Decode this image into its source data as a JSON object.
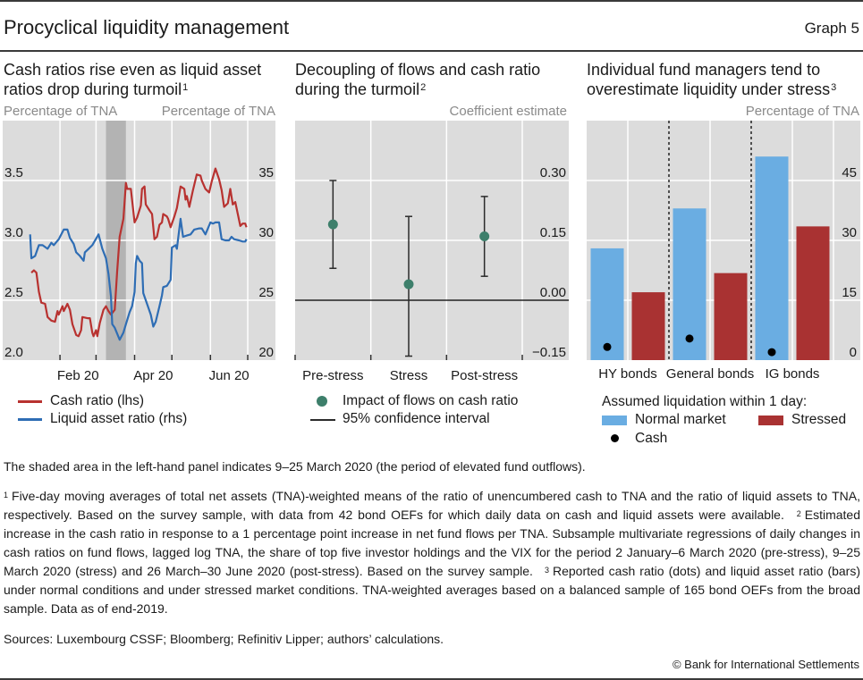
{
  "header": {
    "title": "Procyclical liquidity management",
    "graph_label": "Graph 5"
  },
  "chart_data": [
    {
      "type": "line",
      "title_lines": [
        "Cash ratios rise even as liquid asset",
        "ratios drop during turmoil"
      ],
      "title_footnote": "1",
      "ylabel_left": "Percentage of TNA",
      "ylabel_right": "Percentage of TNA",
      "ylim_left": [
        2.0,
        4.0
      ],
      "ylim_right": [
        20,
        40
      ],
      "yticks_left": [
        {
          "value": 2.0,
          "label": "2.0"
        },
        {
          "value": 2.5,
          "label": "2.5"
        },
        {
          "value": 3.0,
          "label": "3.0"
        },
        {
          "value": 3.5,
          "label": "3.5"
        }
      ],
      "yticks_right": [
        {
          "value": 20,
          "label": "20"
        },
        {
          "value": 25,
          "label": "25"
        },
        {
          "value": 30,
          "label": "30"
        },
        {
          "value": 35,
          "label": "35"
        }
      ],
      "xlim": [
        "2020-01-01",
        "2020-07-01"
      ],
      "xticks": [
        "2020-02-01",
        "2020-03-01",
        "2020-04-01",
        "2020-05-01",
        "2020-06-01",
        "2020-07-01"
      ],
      "xtick_labels": [
        {
          "label": "Feb 20",
          "month_start": "2020-02-01",
          "month_end": "2020-03-01"
        },
        {
          "label": "Apr 20",
          "month_start": "2020-04-01",
          "month_end": "2020-05-01"
        },
        {
          "label": "Jun 20",
          "month_start": "2020-06-01",
          "month_end": "2020-07-01"
        }
      ],
      "shaded_period": [
        "2020-03-09",
        "2020-03-25"
      ],
      "grid": true,
      "legend": "bottom-left",
      "series": [
        {
          "name": "Cash ratio (lhs)",
          "axis": "left",
          "color": "#b83230",
          "points": [
            [
              "2020-01-09",
              2.73
            ],
            [
              "2020-01-11",
              2.75
            ],
            [
              "2020-01-13",
              2.73
            ],
            [
              "2020-01-15",
              2.57
            ],
            [
              "2020-01-17",
              2.48
            ],
            [
              "2020-01-20",
              2.47
            ],
            [
              "2020-01-22",
              2.36
            ],
            [
              "2020-01-25",
              2.33
            ],
            [
              "2020-01-28",
              2.32
            ],
            [
              "2020-01-30",
              2.41
            ],
            [
              "2020-01-31",
              2.38
            ],
            [
              "2020-02-03",
              2.45
            ],
            [
              "2020-02-04",
              2.41
            ],
            [
              "2020-02-07",
              2.47
            ],
            [
              "2020-02-09",
              2.42
            ],
            [
              "2020-02-11",
              2.3
            ],
            [
              "2020-02-14",
              2.21
            ],
            [
              "2020-02-16",
              2.2
            ],
            [
              "2020-02-18",
              2.25
            ],
            [
              "2020-02-19",
              2.36
            ],
            [
              "2020-02-23",
              2.35
            ],
            [
              "2020-02-25",
              2.35
            ],
            [
              "2020-02-27",
              2.23
            ],
            [
              "2020-02-28",
              2.2
            ],
            [
              "2020-03-01",
              2.25
            ],
            [
              "2020-03-02",
              2.2
            ],
            [
              "2020-03-04",
              2.31
            ],
            [
              "2020-03-07",
              2.42
            ],
            [
              "2020-03-09",
              2.45
            ],
            [
              "2020-03-11",
              2.41
            ],
            [
              "2020-03-13",
              2.38
            ],
            [
              "2020-03-16",
              2.42
            ],
            [
              "2020-03-18",
              2.74
            ],
            [
              "2020-03-20",
              3.03
            ],
            [
              "2020-03-23",
              3.18
            ],
            [
              "2020-03-25",
              3.48
            ],
            [
              "2020-03-26",
              3.43
            ],
            [
              "2020-03-29",
              3.43
            ],
            [
              "2020-04-01",
              3.15
            ],
            [
              "2020-04-03",
              3.19
            ],
            [
              "2020-04-06",
              3.29
            ],
            [
              "2020-04-07",
              3.43
            ],
            [
              "2020-04-09",
              3.45
            ],
            [
              "2020-04-10",
              3.3
            ],
            [
              "2020-04-13",
              3.25
            ],
            [
              "2020-04-15",
              3.22
            ],
            [
              "2020-04-17",
              3.01
            ],
            [
              "2020-04-19",
              3.03
            ],
            [
              "2020-04-21",
              3.13
            ],
            [
              "2020-04-23",
              3.15
            ],
            [
              "2020-04-24",
              3.22
            ],
            [
              "2020-04-27",
              3.2
            ],
            [
              "2020-04-28",
              3.18
            ],
            [
              "2020-04-30",
              3.11
            ],
            [
              "2020-05-03",
              3.2
            ],
            [
              "2020-05-05",
              3.27
            ],
            [
              "2020-05-08",
              3.45
            ],
            [
              "2020-05-11",
              3.43
            ],
            [
              "2020-05-12",
              3.34
            ],
            [
              "2020-05-13",
              3.37
            ],
            [
              "2020-05-15",
              3.28
            ],
            [
              "2020-05-18",
              3.42
            ],
            [
              "2020-05-21",
              3.55
            ],
            [
              "2020-05-24",
              3.54
            ],
            [
              "2020-05-25",
              3.5
            ],
            [
              "2020-05-28",
              3.43
            ],
            [
              "2020-05-31",
              3.4
            ],
            [
              "2020-06-02",
              3.49
            ],
            [
              "2020-06-05",
              3.6
            ],
            [
              "2020-06-08",
              3.51
            ],
            [
              "2020-06-10",
              3.42
            ],
            [
              "2020-06-12",
              3.28
            ],
            [
              "2020-06-15",
              3.31
            ],
            [
              "2020-06-17",
              3.43
            ],
            [
              "2020-06-19",
              3.3
            ],
            [
              "2020-06-21",
              3.32
            ],
            [
              "2020-06-23",
              3.22
            ],
            [
              "2020-06-25",
              3.12
            ],
            [
              "2020-06-27",
              3.14
            ],
            [
              "2020-06-29",
              3.14
            ],
            [
              "2020-06-30",
              3.11
            ]
          ]
        },
        {
          "name": "Liquid asset ratio (rhs)",
          "axis": "right",
          "color": "#2e6db4",
          "points": [
            [
              "2020-01-08",
              30.5
            ],
            [
              "2020-01-09",
              28.5
            ],
            [
              "2020-01-12",
              28.7
            ],
            [
              "2020-01-15",
              29.6
            ],
            [
              "2020-01-18",
              29.6
            ],
            [
              "2020-01-22",
              29.3
            ],
            [
              "2020-01-25",
              29.8
            ],
            [
              "2020-01-27",
              29.6
            ],
            [
              "2020-01-31",
              30.1
            ],
            [
              "2020-02-04",
              30.9
            ],
            [
              "2020-02-07",
              30.9
            ],
            [
              "2020-02-09",
              30.2
            ],
            [
              "2020-02-12",
              29.7
            ],
            [
              "2020-02-14",
              29.0
            ],
            [
              "2020-02-17",
              28.7
            ],
            [
              "2020-02-20",
              28.3
            ],
            [
              "2020-02-21",
              29.0
            ],
            [
              "2020-02-24",
              29.3
            ],
            [
              "2020-02-27",
              29.6
            ],
            [
              "2020-03-03",
              30.5
            ],
            [
              "2020-03-06",
              29.3
            ],
            [
              "2020-03-09",
              28.5
            ],
            [
              "2020-03-11",
              27.2
            ],
            [
              "2020-03-13",
              25.3
            ],
            [
              "2020-03-14",
              23.0
            ],
            [
              "2020-03-16",
              22.7
            ],
            [
              "2020-03-20",
              21.7
            ],
            [
              "2020-03-23",
              22.3
            ],
            [
              "2020-03-25",
              23.0
            ],
            [
              "2020-03-28",
              24.0
            ],
            [
              "2020-03-30",
              24.5
            ],
            [
              "2020-04-01",
              25.7
            ],
            [
              "2020-04-02",
              28.1
            ],
            [
              "2020-04-03",
              28.7
            ],
            [
              "2020-04-05",
              28.3
            ],
            [
              "2020-04-07",
              28.1
            ],
            [
              "2020-04-08",
              25.6
            ],
            [
              "2020-04-11",
              24.7
            ],
            [
              "2020-04-14",
              23.8
            ],
            [
              "2020-04-16",
              22.8
            ],
            [
              "2020-04-18",
              23.2
            ],
            [
              "2020-04-21",
              24.5
            ],
            [
              "2020-04-23",
              25.4
            ],
            [
              "2020-04-24",
              26.1
            ],
            [
              "2020-04-27",
              26.2
            ],
            [
              "2020-04-30",
              26.7
            ],
            [
              "2020-05-01",
              29.4
            ],
            [
              "2020-05-04",
              29.6
            ],
            [
              "2020-05-05",
              29.3
            ],
            [
              "2020-05-08",
              31.8
            ],
            [
              "2020-05-10",
              30.3
            ],
            [
              "2020-05-13",
              30.4
            ],
            [
              "2020-05-16",
              30.5
            ],
            [
              "2020-05-19",
              30.9
            ],
            [
              "2020-05-23",
              31.0
            ],
            [
              "2020-05-25",
              31.0
            ],
            [
              "2020-05-28",
              30.5
            ],
            [
              "2020-06-01",
              31.5
            ],
            [
              "2020-06-03",
              31.4
            ],
            [
              "2020-06-05",
              31.5
            ],
            [
              "2020-06-08",
              31.5
            ],
            [
              "2020-06-10",
              30.1
            ],
            [
              "2020-06-13",
              30.0
            ],
            [
              "2020-06-16",
              30.0
            ],
            [
              "2020-06-18",
              30.3
            ],
            [
              "2020-06-20",
              30.1
            ],
            [
              "2020-06-24",
              30.0
            ],
            [
              "2020-06-27",
              29.9
            ],
            [
              "2020-06-29",
              29.9
            ],
            [
              "2020-06-30",
              30.1
            ]
          ]
        }
      ]
    },
    {
      "type": "scatter",
      "title_lines": [
        "Decoupling of flows and cash ratio",
        "during the turmoil"
      ],
      "title_footnote": "2",
      "ylabel": "Coefficient estimate",
      "ylim": [
        -0.15,
        0.45
      ],
      "yticks": [
        {
          "value": -0.15,
          "label": "−0.15"
        },
        {
          "value": 0.0,
          "label": "0.00"
        },
        {
          "value": 0.15,
          "label": "0.15"
        },
        {
          "value": 0.3,
          "label": "0.30"
        }
      ],
      "categories": [
        "Pre-stress",
        "Stress",
        "Post-stress"
      ],
      "grid": true,
      "zero_line": true,
      "series": [
        {
          "name": "Impact of flows on cash ratio",
          "color": "#3d7f6b",
          "values": [
            0.19,
            0.04,
            0.16
          ]
        }
      ],
      "confidence_interval": {
        "name": "95% confidence interval",
        "color": "#2b2b2b",
        "low": [
          0.08,
          -0.14,
          0.06
        ],
        "high": [
          0.3,
          0.21,
          0.26
        ]
      },
      "legend": "bottom"
    },
    {
      "type": "bar",
      "title_lines": [
        "Individual fund managers tend to",
        "overestimate liquidity under stress"
      ],
      "title_footnote": "3",
      "ylabel": "Percentage of TNA",
      "ylim": [
        0,
        60
      ],
      "yticks": [
        {
          "value": 0,
          "label": "0"
        },
        {
          "value": 15,
          "label": "15"
        },
        {
          "value": 30,
          "label": "30"
        },
        {
          "value": 45,
          "label": "45"
        }
      ],
      "categories": [
        "HY bonds",
        "General bonds",
        "IG bonds"
      ],
      "grid": true,
      "legend_title": "Assumed liquidation within 1 day:",
      "series": [
        {
          "name": "Normal market",
          "color": "#6aade2",
          "values": [
            28.0,
            38.0,
            51.0
          ]
        },
        {
          "name": "Stressed",
          "color": "#a93232",
          "values": [
            17.0,
            21.8,
            33.5
          ]
        }
      ],
      "markers": {
        "name": "Cash",
        "color": "#000000",
        "values": [
          3.3,
          5.4,
          2.0
        ]
      },
      "legend": "bottom"
    }
  ],
  "notes": {
    "shaded_area": "The shaded area in the left-hand panel indicates 9–25 March 2020 (the period of elevated fund outflows).",
    "footnotes": [
      {
        "marker": "1",
        "text": "Five-day moving averages of total net assets (TNA)-weighted means of the ratio of unencumbered cash to TNA and the ratio of liquid assets to TNA, respectively. Based on the survey sample, with data from 42 bond OEFs for which daily data on cash and liquid assets were available."
      },
      {
        "marker": "2",
        "text": "Estimated increase in the cash ratio in response to a 1 percentage point increase in net fund flows per TNA. Subsample multivariate regressions of daily changes in cash ratios on fund flows, lagged log TNA, the share of top five investor holdings and the VIX for the period 2 January–6 March 2020 (pre-stress), 9–25 March 2020 (stress) and 26 March–30 June 2020 (post-stress). Based on the survey sample."
      },
      {
        "marker": "3",
        "text": "Reported cash ratio (dots) and liquid asset ratio (bars) under normal conditions and under stressed market conditions. TNA-weighted averages based on a balanced sample of 165 bond OEFs from the broad sample. Data as of end-2019."
      }
    ],
    "sources": "Sources: Luxembourg CSSF; Bloomberg; Refinitiv Lipper; authors’ calculations.",
    "copyright": "© Bank for International Settlements"
  }
}
